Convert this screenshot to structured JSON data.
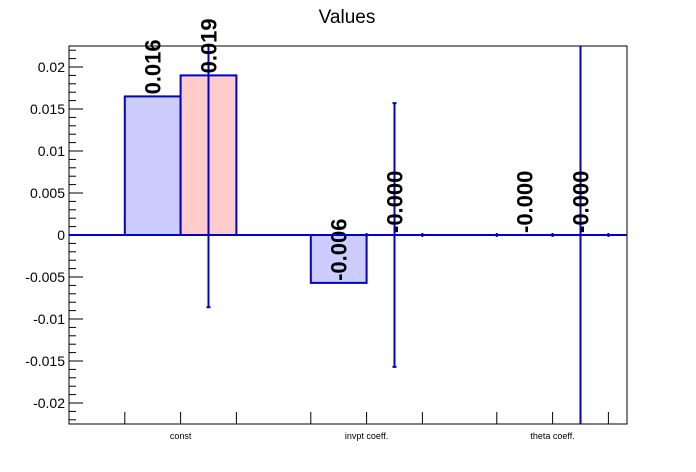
{
  "chart_data": {
    "type": "bar",
    "title": "Values",
    "xlabel": "",
    "ylabel": "",
    "categories": [
      "const",
      "invpt coeff.",
      "theta coeff."
    ],
    "ylim": [
      -0.0225,
      0.0225
    ],
    "yticks": [
      -0.02,
      -0.015,
      -0.01,
      -0.005,
      0,
      0.005,
      0.01,
      0.015,
      0.02
    ],
    "ytick_labels": [
      "-0.02",
      "-0.015",
      "-0.01",
      "-0.005",
      "0",
      "0.005",
      "0.01",
      "0.015",
      "0.02"
    ],
    "grid": false,
    "series": [
      {
        "fill_color": "#ccccff",
        "edge_color": "#0000cc",
        "values": [
          0.0165,
          -0.0057,
          0.0
        ],
        "value_labels": [
          "0.016",
          "-0.006",
          "-0.000"
        ],
        "errors": [
          null,
          null,
          null
        ]
      },
      {
        "fill_color": "#ffcccc",
        "edge_color": "#0000cc",
        "values": [
          0.019,
          0.0,
          0.0
        ],
        "value_labels": [
          "0.019",
          "-0.000",
          "-0.000"
        ],
        "errors": [
          0.0276,
          0.0157,
          0.03
        ]
      }
    ]
  }
}
